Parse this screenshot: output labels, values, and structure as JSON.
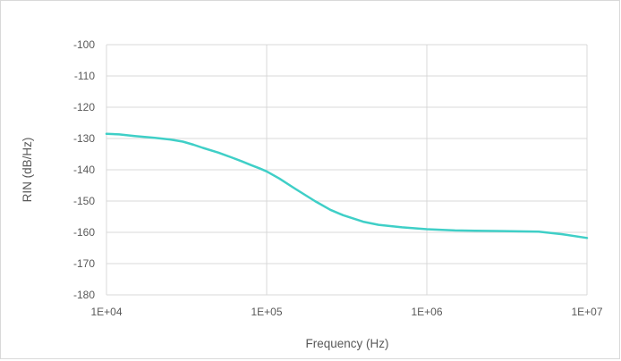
{
  "chart_data": {
    "type": "line",
    "title": "",
    "xlabel": "Frequency (Hz)",
    "ylabel": "RIN (dB/Hz)",
    "x_scale": "log",
    "xlim": [
      10000,
      10000000
    ],
    "ylim": [
      -180,
      -100
    ],
    "x_ticks": [
      "1E+04",
      "1E+05",
      "1E+06",
      "1E+07"
    ],
    "y_ticks": [
      "-100",
      "-110",
      "-120",
      "-130",
      "-140",
      "-150",
      "-160",
      "-170",
      "-180"
    ],
    "grid": true,
    "legend": "none",
    "series": [
      {
        "color": "#3fcfc7",
        "x": [
          10000,
          12000,
          15000,
          20000,
          25000,
          30000,
          35000,
          40000,
          50000,
          60000,
          70000,
          80000,
          90000,
          100000,
          120000,
          150000,
          200000,
          250000,
          300000,
          400000,
          500000,
          700000,
          1000000,
          1500000,
          2000000,
          3000000,
          5000000,
          7000000,
          10000000
        ],
        "y": [
          -128.5,
          -128.7,
          -129.2,
          -129.8,
          -130.3,
          -131.0,
          -132.0,
          -133.0,
          -134.5,
          -136.0,
          -137.3,
          -138.5,
          -139.5,
          -140.5,
          -142.8,
          -146.0,
          -150.0,
          -152.8,
          -154.5,
          -156.6,
          -157.6,
          -158.4,
          -159.0,
          -159.4,
          -159.5,
          -159.6,
          -159.8,
          -160.6,
          -161.8
        ]
      }
    ]
  }
}
